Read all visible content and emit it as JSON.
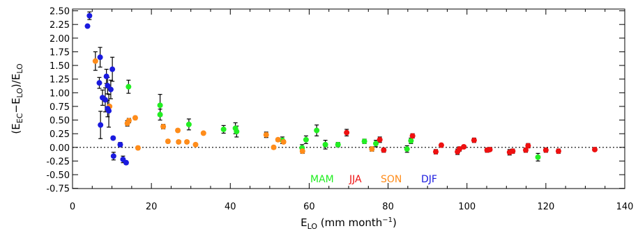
{
  "chart_data": {
    "type": "scatter",
    "title": "",
    "xlabel": "E_LO (mm month^-1)",
    "ylabel": "(E_EC - E_LO)/E_LO",
    "xlim": [
      0,
      140
    ],
    "ylim": [
      -0.8,
      2.55
    ],
    "xticks": [
      0,
      20,
      40,
      60,
      80,
      100,
      120,
      140
    ],
    "yticks": [
      -0.75,
      -0.5,
      -0.25,
      0.0,
      0.25,
      0.5,
      0.75,
      1.0,
      1.25,
      1.5,
      1.75,
      2.0,
      2.25,
      2.5
    ],
    "ytick_labels": [
      "-0.75",
      "-0.50",
      "-0.25",
      "0.00",
      "0.25",
      "0.50",
      "0.75",
      "1.00",
      "1.25",
      "1.50",
      "1.75",
      "2.00",
      "2.25",
      "2.50"
    ],
    "reference_line": {
      "y": 0,
      "style": "dotted"
    },
    "legend_position": "bottom-center",
    "grid": false,
    "series": [
      {
        "name": "MAM",
        "color": "#22ee22",
        "points": [
          {
            "x": 14.2,
            "y": 1.11,
            "err": 0.12
          },
          {
            "x": 22.2,
            "y": 0.77,
            "err": 0.2
          },
          {
            "x": 22.2,
            "y": 0.6,
            "err": 0.1
          },
          {
            "x": 29.5,
            "y": 0.42,
            "err": 0.1
          },
          {
            "x": 38.3,
            "y": 0.33,
            "err": 0.07
          },
          {
            "x": 41.3,
            "y": 0.35,
            "err": 0.1
          },
          {
            "x": 41.6,
            "y": 0.29,
            "err": 0.1
          },
          {
            "x": 53.2,
            "y": 0.13,
            "err": 0.06
          },
          {
            "x": 58.2,
            "y": -0.01,
            "err": 0.06
          },
          {
            "x": 59.2,
            "y": 0.14,
            "err": 0.07
          },
          {
            "x": 61.9,
            "y": 0.31,
            "err": 0.1
          },
          {
            "x": 64.1,
            "y": 0.05,
            "err": 0.08
          },
          {
            "x": 67.3,
            "y": 0.05,
            "err": 0.04
          },
          {
            "x": 74.0,
            "y": 0.11,
            "err": 0.04
          },
          {
            "x": 76.9,
            "y": 0.07,
            "err": 0.06
          },
          {
            "x": 84.8,
            "y": -0.03,
            "err": 0.06
          },
          {
            "x": 85.8,
            "y": 0.12,
            "err": 0.05
          },
          {
            "x": 118.0,
            "y": -0.18,
            "err": 0.07
          }
        ]
      },
      {
        "name": "JJA",
        "color": "#ee1111",
        "points": [
          {
            "x": 69.5,
            "y": 0.27,
            "err": 0.06
          },
          {
            "x": 77.9,
            "y": 0.14,
            "err": 0.05
          },
          {
            "x": 78.9,
            "y": -0.05,
            "err": 0.04
          },
          {
            "x": 86.2,
            "y": 0.21,
            "err": 0.04
          },
          {
            "x": 92.1,
            "y": -0.08,
            "err": 0.04
          },
          {
            "x": 93.5,
            "y": 0.04,
            "err": 0.03
          },
          {
            "x": 97.6,
            "y": -0.08,
            "err": 0.05
          },
          {
            "x": 98.1,
            "y": -0.03,
            "err": 0.04
          },
          {
            "x": 99.2,
            "y": 0.01,
            "err": 0.03
          },
          {
            "x": 101.8,
            "y": 0.13,
            "err": 0.04
          },
          {
            "x": 105.1,
            "y": -0.05,
            "err": 0.04
          },
          {
            "x": 105.8,
            "y": -0.04,
            "err": 0.03
          },
          {
            "x": 110.8,
            "y": -0.09,
            "err": 0.05
          },
          {
            "x": 111.6,
            "y": -0.07,
            "err": 0.04
          },
          {
            "x": 114.9,
            "y": -0.05,
            "err": 0.04
          },
          {
            "x": 115.5,
            "y": 0.03,
            "err": 0.04
          },
          {
            "x": 120.0,
            "y": -0.05,
            "err": 0.04
          },
          {
            "x": 123.2,
            "y": -0.07,
            "err": 0.04
          },
          {
            "x": 132.4,
            "y": -0.04,
            "err": 0.03
          }
        ]
      },
      {
        "name": "SON",
        "color": "#ff8c1a",
        "points": [
          {
            "x": 5.8,
            "y": 1.58,
            "err": 0.17
          },
          {
            "x": 9.4,
            "y": 0.75,
            "err": 0.0
          },
          {
            "x": 13.9,
            "y": 0.44,
            "err": 0.05
          },
          {
            "x": 14.3,
            "y": 0.49,
            "err": 0.04
          },
          {
            "x": 15.9,
            "y": 0.54,
            "err": 0.03
          },
          {
            "x": 16.6,
            "y": -0.01,
            "err": 0.03
          },
          {
            "x": 23.0,
            "y": 0.38,
            "err": 0.04
          },
          {
            "x": 24.2,
            "y": 0.11,
            "err": 0.03
          },
          {
            "x": 26.7,
            "y": 0.31,
            "err": 0.03
          },
          {
            "x": 26.9,
            "y": 0.1,
            "err": 0.03
          },
          {
            "x": 29.0,
            "y": 0.1,
            "err": 0.03
          },
          {
            "x": 31.2,
            "y": 0.05,
            "err": 0.02
          },
          {
            "x": 33.2,
            "y": 0.26,
            "err": 0.02
          },
          {
            "x": 49.1,
            "y": 0.23,
            "err": 0.05
          },
          {
            "x": 51.0,
            "y": 0.0,
            "err": 0.03
          },
          {
            "x": 52.1,
            "y": 0.14,
            "err": 0.03
          },
          {
            "x": 53.5,
            "y": 0.1,
            "err": 0.03
          },
          {
            "x": 58.3,
            "y": -0.07,
            "err": 0.04
          },
          {
            "x": 75.9,
            "y": -0.03,
            "err": 0.04
          }
        ]
      },
      {
        "name": "DJF",
        "color": "#1a1adf",
        "points": [
          {
            "x": 3.8,
            "y": 2.22,
            "err": 0.0
          },
          {
            "x": 4.3,
            "y": 2.41,
            "err": 0.07
          },
          {
            "x": 6.8,
            "y": 1.18,
            "err": 0.1
          },
          {
            "x": 7.0,
            "y": 1.65,
            "err": 0.18
          },
          {
            "x": 7.1,
            "y": 0.41,
            "err": 0.25
          },
          {
            "x": 7.6,
            "y": 0.91,
            "err": 0.14
          },
          {
            "x": 8.3,
            "y": 0.87,
            "err": 0.22
          },
          {
            "x": 8.6,
            "y": 1.3,
            "err": 0.13
          },
          {
            "x": 8.9,
            "y": 1.13,
            "err": 0.15
          },
          {
            "x": 8.9,
            "y": 0.71,
            "err": 0.15
          },
          {
            "x": 9.2,
            "y": 0.67,
            "err": 0.3
          },
          {
            "x": 9.7,
            "y": 1.06,
            "err": 0.17
          },
          {
            "x": 10.1,
            "y": 1.43,
            "err": 0.22
          },
          {
            "x": 10.3,
            "y": 0.17,
            "err": 0.03
          },
          {
            "x": 10.4,
            "y": -0.16,
            "err": 0.07
          },
          {
            "x": 12.1,
            "y": 0.05,
            "err": 0.04
          },
          {
            "x": 12.8,
            "y": -0.22,
            "err": 0.06
          },
          {
            "x": 13.6,
            "y": -0.28,
            "err": 0.03
          }
        ]
      }
    ]
  }
}
